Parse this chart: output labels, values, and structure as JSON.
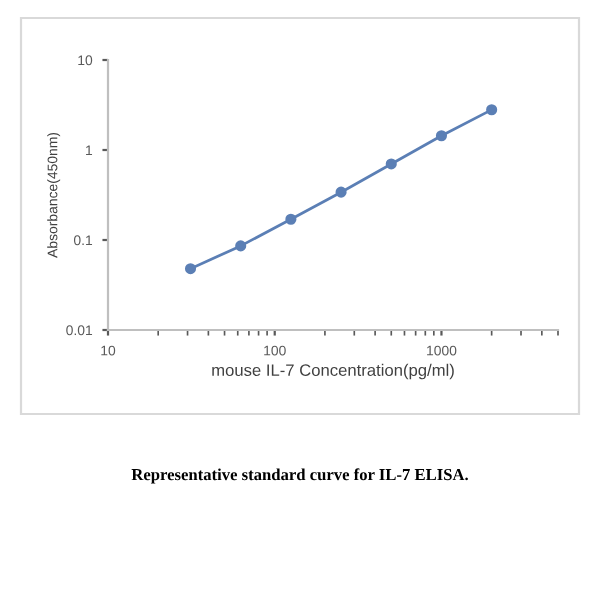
{
  "chart_data": {
    "type": "line",
    "xlabel": "mouse IL-7 Concentration(pg/ml)",
    "ylabel": "Absorbance(450nm)",
    "x": [
      31.25,
      62.5,
      125,
      250,
      500,
      1000,
      2000
    ],
    "series": [
      {
        "color": "#5b7fb5",
        "values": [
          0.048,
          0.086,
          0.17,
          0.34,
          0.7,
          1.44,
          2.8
        ]
      }
    ],
    "log": "xy",
    "xlim": [
      10,
      5000
    ],
    "xticks": [
      10,
      100,
      1000
    ],
    "ylim": [
      0.01,
      10
    ],
    "yticks": [
      0.01,
      0.1,
      1,
      10
    ],
    "marker": "circle",
    "line_style": "solid",
    "grid": false,
    "legend": false,
    "annotations": [
      "Representative standard curve for IL-7 ELISA."
    ]
  }
}
